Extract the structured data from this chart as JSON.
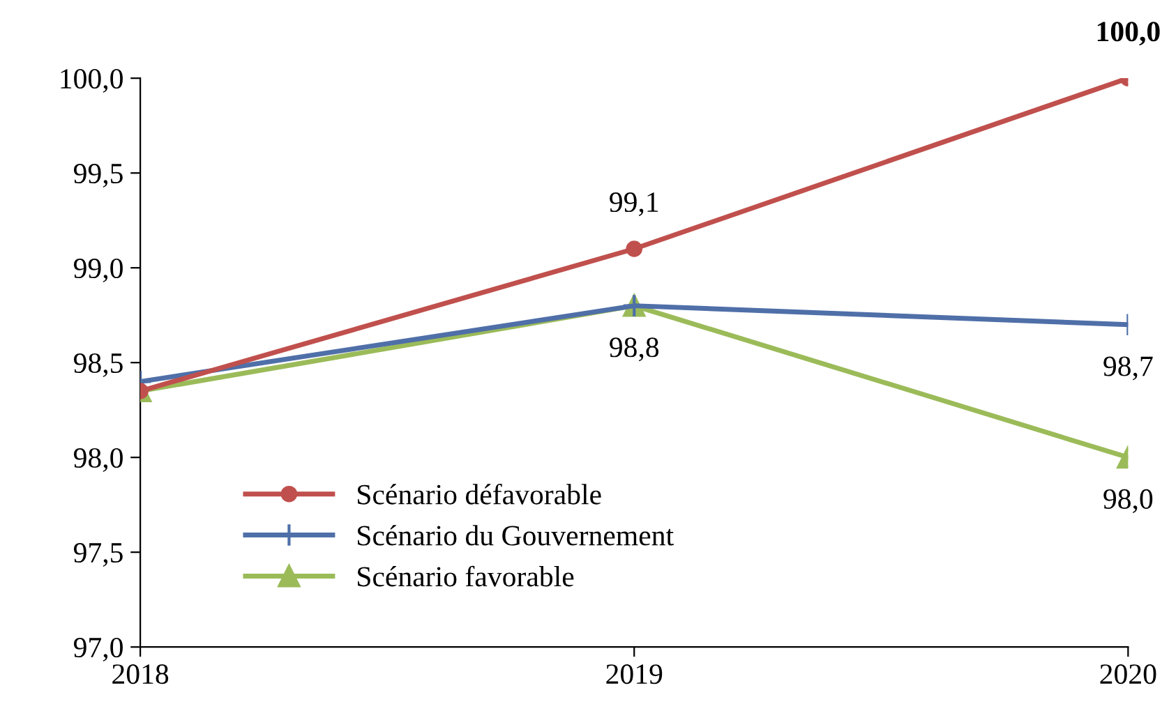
{
  "chart_data": {
    "type": "line",
    "x": [
      2018,
      2019,
      2020
    ],
    "xlim": [
      2018,
      2020
    ],
    "xticks": [
      2018,
      2019,
      2020
    ],
    "ylim": [
      97,
      100
    ],
    "yticks": [
      {
        "value": 97,
        "label": "97,0"
      },
      {
        "value": 97.5,
        "label": "97,5"
      },
      {
        "value": 98,
        "label": "98,0"
      },
      {
        "value": 98.5,
        "label": "98,5"
      },
      {
        "value": 99,
        "label": "99,0"
      },
      {
        "value": 99.5,
        "label": "99,5"
      },
      {
        "value": 100,
        "label": "100,0"
      }
    ],
    "grid": false,
    "legend": "bottom left",
    "line_style": "solid",
    "series": [
      {
        "name": "Scénario défavorable",
        "color": "#c0504d",
        "marker": "circle",
        "values": [
          98.35,
          99.1,
          100.0
        ],
        "value_labels": [
          null,
          "99,1",
          "100,0"
        ]
      },
      {
        "name": "Scénario du Gouvernement",
        "color": "#4f6fa8",
        "marker": "cross",
        "values": [
          98.4,
          98.8,
          98.7
        ],
        "value_labels": [
          null,
          null,
          "98,7"
        ]
      },
      {
        "name": "Scénario favorable",
        "color": "#9bbb59",
        "marker": "triangle",
        "values": [
          98.35,
          98.8,
          98.0
        ],
        "value_labels": [
          null,
          "98,8",
          "98,0"
        ]
      }
    ]
  }
}
